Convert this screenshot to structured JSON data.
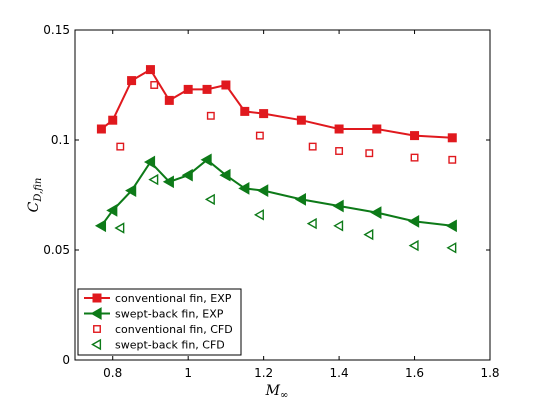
{
  "chart_data": {
    "type": "line",
    "xlabel_main": "M",
    "xlabel_sub": "∞",
    "ylabel_main": "C",
    "ylabel_sub": "D,fin",
    "xlim": [
      0.7,
      1.8
    ],
    "ylim": [
      0,
      0.15
    ],
    "x_ticks": [
      "0.8",
      "1",
      "1.2",
      "1.4",
      "1.6",
      "1.8"
    ],
    "y_ticks": [
      "0",
      "0.05",
      "0.1",
      "0.15"
    ],
    "grid": false,
    "legend_position": "bottom-left",
    "series": [
      {
        "name": "conventional fin, EXP",
        "color": "#e0191e",
        "marker": "filled-square",
        "line": true,
        "x": [
          0.77,
          0.8,
          0.85,
          0.9,
          0.95,
          1.0,
          1.05,
          1.1,
          1.15,
          1.2,
          1.3,
          1.4,
          1.5,
          1.6,
          1.7
        ],
        "y": [
          0.105,
          0.109,
          0.127,
          0.132,
          0.118,
          0.123,
          0.123,
          0.125,
          0.113,
          0.112,
          0.109,
          0.105,
          0.105,
          0.102,
          0.101
        ]
      },
      {
        "name": "swept-back fin, EXP",
        "color": "#0d7a18",
        "marker": "filled-triangle-left",
        "line": true,
        "x": [
          0.77,
          0.8,
          0.85,
          0.9,
          0.95,
          1.0,
          1.05,
          1.1,
          1.15,
          1.2,
          1.3,
          1.4,
          1.5,
          1.6,
          1.7
        ],
        "y": [
          0.061,
          0.068,
          0.077,
          0.09,
          0.081,
          0.084,
          0.091,
          0.084,
          0.078,
          0.077,
          0.073,
          0.07,
          0.067,
          0.063,
          0.061
        ]
      },
      {
        "name": "conventional fin, CFD",
        "color": "#e0191e",
        "marker": "open-square",
        "line": false,
        "x": [
          0.82,
          0.91,
          1.06,
          1.19,
          1.33,
          1.4,
          1.48,
          1.6,
          1.7
        ],
        "y": [
          0.097,
          0.125,
          0.111,
          0.102,
          0.097,
          0.095,
          0.094,
          0.092,
          0.091
        ]
      },
      {
        "name": "swept-back fin, CFD",
        "color": "#0d7a18",
        "marker": "open-triangle-left",
        "line": false,
        "x": [
          0.82,
          0.91,
          1.06,
          1.19,
          1.33,
          1.4,
          1.48,
          1.6,
          1.7
        ],
        "y": [
          0.06,
          0.082,
          0.073,
          0.066,
          0.062,
          0.061,
          0.057,
          0.052,
          0.051
        ]
      }
    ]
  }
}
